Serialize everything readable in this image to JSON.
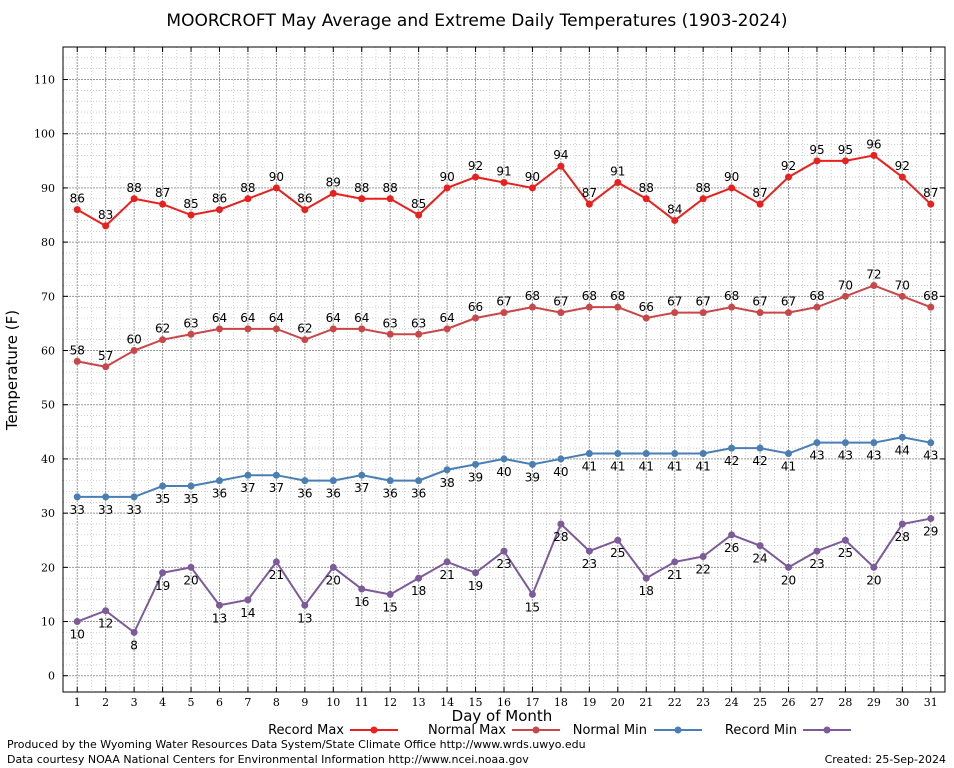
{
  "chart_data": {
    "type": "line",
    "title": "MOORCROFT May Average and Extreme Daily Temperatures (1903-2024)",
    "xlabel": "Day of Month",
    "ylabel": "Temperature (F)",
    "xlim": [
      0.5,
      31.5
    ],
    "ylim": [
      -3,
      116
    ],
    "y_ticks": [
      0,
      10,
      20,
      30,
      40,
      50,
      60,
      70,
      80,
      90,
      100,
      110
    ],
    "grid": true,
    "legend_position": "bottom",
    "x": [
      1,
      2,
      3,
      4,
      5,
      6,
      7,
      8,
      9,
      10,
      11,
      12,
      13,
      14,
      15,
      16,
      17,
      18,
      19,
      20,
      21,
      22,
      23,
      24,
      25,
      26,
      27,
      28,
      29,
      30,
      31
    ],
    "series": [
      {
        "name": "Record Max",
        "color": "#e8201e",
        "label_position": "above",
        "values": [
          86,
          83,
          88,
          87,
          85,
          86,
          88,
          90,
          86,
          89,
          88,
          88,
          85,
          90,
          92,
          91,
          90,
          94,
          87,
          91,
          88,
          84,
          88,
          90,
          87,
          92,
          95,
          95,
          96,
          92,
          87
        ]
      },
      {
        "name": "Normal Max",
        "color": "#c8484a",
        "label_position": "above",
        "values": [
          58,
          57,
          60,
          62,
          63,
          64,
          64,
          64,
          62,
          64,
          64,
          63,
          63,
          64,
          66,
          67,
          68,
          67,
          68,
          68,
          66,
          67,
          67,
          68,
          67,
          67,
          68,
          70,
          72,
          70,
          68
        ]
      },
      {
        "name": "Normal Min",
        "color": "#4a7fb5",
        "label_position": "below",
        "values": [
          33,
          33,
          33,
          35,
          35,
          36,
          37,
          37,
          36,
          36,
          37,
          36,
          36,
          38,
          39,
          40,
          39,
          40,
          41,
          41,
          41,
          41,
          41,
          42,
          42,
          41,
          43,
          43,
          43,
          44,
          43
        ]
      },
      {
        "name": "Record Min",
        "color": "#7d5a9a",
        "label_position": "below",
        "values": [
          10,
          12,
          8,
          19,
          20,
          13,
          14,
          21,
          13,
          20,
          16,
          15,
          18,
          21,
          19,
          23,
          15,
          28,
          23,
          25,
          18,
          21,
          22,
          26,
          24,
          20,
          23,
          25,
          20,
          28,
          29
        ]
      }
    ]
  },
  "footer": {
    "produced_by": "Produced by the Wyoming Water Resources Data System/State Climate Office http://www.wrds.uwyo.edu",
    "courtesy": "Data courtesy NOAA National Centers for Environmental Information http://www.ncei.noaa.gov",
    "created": "Created:  25-Sep-2024"
  }
}
